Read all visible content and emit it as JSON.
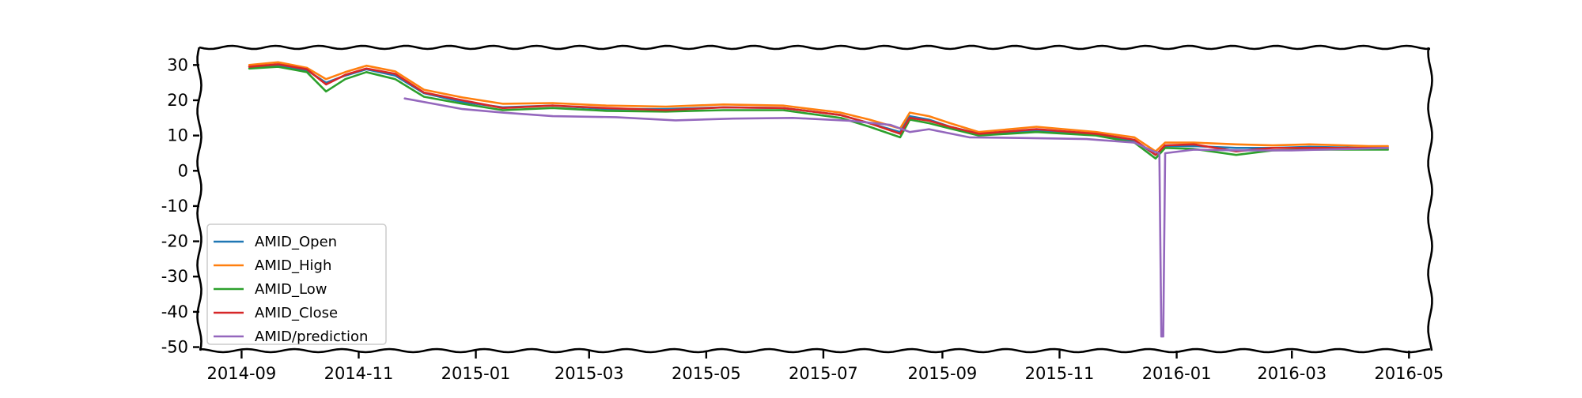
{
  "chart_data": {
    "type": "line",
    "title": "",
    "xlabel": "",
    "ylabel": "",
    "xlim": [
      "2014-08-10",
      "2016-05-12"
    ],
    "ylim": [
      -51,
      35
    ],
    "xticks": [
      "2014-09",
      "2014-11",
      "2015-01",
      "2015-03",
      "2015-05",
      "2015-07",
      "2015-09",
      "2015-11",
      "2016-01",
      "2016-03",
      "2016-05"
    ],
    "yticks": [
      30,
      20,
      10,
      0,
      -10,
      -20,
      -30,
      -40,
      -50
    ],
    "grid": false,
    "legend_position": "lower-left",
    "series": [
      {
        "name": "AMID_Open",
        "color": "#1f77b4",
        "x": [
          "2014-09-05",
          "2014-09-20",
          "2014-10-05",
          "2014-10-15",
          "2014-10-25",
          "2014-11-05",
          "2014-11-20",
          "2014-12-05",
          "2014-12-25",
          "2015-01-15",
          "2015-02-10",
          "2015-03-10",
          "2015-04-10",
          "2015-05-10",
          "2015-06-10",
          "2015-07-10",
          "2015-07-25",
          "2015-08-10",
          "2015-08-15",
          "2015-08-25",
          "2015-09-05",
          "2015-09-20",
          "2015-10-20",
          "2015-11-20",
          "2015-12-10",
          "2015-12-21",
          "2015-12-26",
          "2016-01-10",
          "2016-02-01",
          "2016-02-20",
          "2016-03-10",
          "2016-04-10",
          "2016-04-20"
        ],
        "y": [
          29.5,
          30,
          28.5,
          25,
          27,
          28.8,
          27,
          22,
          19.5,
          18,
          18.5,
          17.5,
          17.5,
          18,
          17.8,
          15.8,
          13.5,
          11,
          15.5,
          14.5,
          12.5,
          10.5,
          11.5,
          10.5,
          8.5,
          4.5,
          7,
          7,
          6.5,
          6.5,
          6.8,
          6.5,
          6.5
        ]
      },
      {
        "name": "AMID_High",
        "color": "#ff7f0e",
        "x": [
          "2014-09-05",
          "2014-09-20",
          "2014-10-05",
          "2014-10-15",
          "2014-10-25",
          "2014-11-05",
          "2014-11-20",
          "2014-12-05",
          "2014-12-25",
          "2015-01-15",
          "2015-02-10",
          "2015-03-10",
          "2015-04-10",
          "2015-05-10",
          "2015-06-10",
          "2015-07-10",
          "2015-07-25",
          "2015-08-10",
          "2015-08-15",
          "2015-08-25",
          "2015-09-05",
          "2015-09-20",
          "2015-10-20",
          "2015-11-20",
          "2015-12-10",
          "2015-12-21",
          "2015-12-26",
          "2016-01-10",
          "2016-02-01",
          "2016-02-20",
          "2016-03-10",
          "2016-04-10",
          "2016-04-20"
        ],
        "y": [
          30,
          30.8,
          29.2,
          26,
          28,
          29.8,
          28.2,
          23,
          20.8,
          19,
          19.2,
          18.5,
          18.2,
          18.8,
          18.5,
          16.5,
          14.5,
          12,
          16.5,
          15.5,
          13.5,
          11,
          12.5,
          11,
          9.5,
          5.5,
          8,
          8,
          7.5,
          7.2,
          7.5,
          7,
          7
        ]
      },
      {
        "name": "AMID_Low",
        "color": "#2ca02c",
        "x": [
          "2014-09-05",
          "2014-09-20",
          "2014-10-05",
          "2014-10-15",
          "2014-10-25",
          "2014-11-05",
          "2014-11-20",
          "2014-12-05",
          "2014-12-25",
          "2015-01-15",
          "2015-02-10",
          "2015-03-10",
          "2015-04-10",
          "2015-05-10",
          "2015-06-10",
          "2015-07-10",
          "2015-07-25",
          "2015-08-10",
          "2015-08-15",
          "2015-08-25",
          "2015-09-05",
          "2015-09-20",
          "2015-10-20",
          "2015-11-20",
          "2015-12-10",
          "2015-12-21",
          "2015-12-26",
          "2016-01-10",
          "2016-02-01",
          "2016-02-20",
          "2016-03-10",
          "2016-04-10",
          "2016-04-20"
        ],
        "y": [
          29,
          29.5,
          28,
          22.5,
          26,
          28,
          26,
          21,
          19,
          17.2,
          17.8,
          17,
          16.8,
          17.2,
          17.2,
          15,
          12.5,
          9.5,
          14.5,
          13.5,
          12,
          10,
          11,
          10,
          8,
          3.5,
          6.5,
          6.2,
          4.5,
          5.8,
          6,
          6,
          6
        ]
      },
      {
        "name": "AMID_Close",
        "color": "#d62728",
        "x": [
          "2014-09-05",
          "2014-09-20",
          "2014-10-05",
          "2014-10-15",
          "2014-10-25",
          "2014-11-05",
          "2014-11-20",
          "2014-12-05",
          "2014-12-25",
          "2015-01-15",
          "2015-02-10",
          "2015-03-10",
          "2015-04-10",
          "2015-05-10",
          "2015-06-10",
          "2015-07-10",
          "2015-07-25",
          "2015-08-10",
          "2015-08-15",
          "2015-08-25",
          "2015-09-05",
          "2015-09-20",
          "2015-10-20",
          "2015-11-20",
          "2015-12-10",
          "2015-12-21",
          "2015-12-26",
          "2016-01-10",
          "2016-02-01",
          "2016-02-20",
          "2016-03-10",
          "2016-04-10",
          "2016-04-20"
        ],
        "y": [
          29.5,
          30.2,
          28.8,
          24.5,
          27.2,
          29,
          27.5,
          22.2,
          20,
          17.8,
          18.5,
          17.8,
          17.2,
          18,
          17.8,
          15.8,
          13.5,
          10.5,
          15,
          14.2,
          12.5,
          10.5,
          11.8,
          10.5,
          8.8,
          4.5,
          7.2,
          7.5,
          5.5,
          6.5,
          6.5,
          6.5,
          6.5
        ]
      },
      {
        "name": "AMID/prediction",
        "color": "#9467bd",
        "x": [
          "2014-11-25",
          "2014-12-10",
          "2014-12-25",
          "2015-01-15",
          "2015-02-10",
          "2015-03-15",
          "2015-04-15",
          "2015-05-15",
          "2015-06-15",
          "2015-07-15",
          "2015-08-05",
          "2015-08-15",
          "2015-08-25",
          "2015-09-15",
          "2015-10-15",
          "2015-11-15",
          "2015-12-10",
          "2015-12-20",
          "2015-12-23",
          "2015-12-24",
          "2015-12-25",
          "2015-12-26",
          "2016-01-10",
          "2016-02-01",
          "2016-03-01",
          "2016-04-01",
          "2016-04-20"
        ],
        "y": [
          20.5,
          19,
          17.5,
          16.5,
          15.5,
          15.2,
          14.3,
          14.8,
          15,
          14.2,
          13,
          11,
          11.8,
          9.5,
          9.3,
          9,
          8,
          5.5,
          5,
          -47,
          -47,
          5,
          6,
          5.8,
          5.8,
          6.2,
          6.5
        ]
      }
    ]
  }
}
